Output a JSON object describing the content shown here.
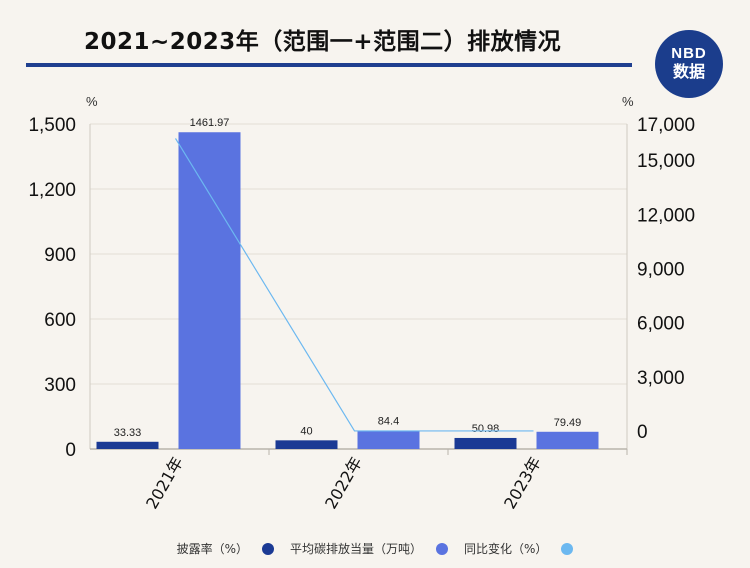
{
  "header": {
    "title": "2021~2023年（范围一+范围二）排放情况",
    "logo_top": "NBD",
    "logo_bottom": "数据"
  },
  "chart_data": {
    "type": "bar",
    "categories": [
      "2021年",
      "2022年",
      "2023年"
    ],
    "series": [
      {
        "name": "披露率（%）",
        "values": [
          33.33,
          40,
          50.98
        ],
        "color": "#1b3a94",
        "axis": "left",
        "kind": "bar"
      },
      {
        "name": "平均碳排放当量（万吨）",
        "values": [
          1461.97,
          84.4,
          79.49
        ],
        "color": "#5a73e0",
        "axis": "left",
        "kind": "bar"
      },
      {
        "name": "同比变化（%）",
        "values": [
          16200,
          0,
          0
        ],
        "color": "#6cb8f0",
        "axis": "right",
        "kind": "line"
      }
    ],
    "y_left": {
      "unit": "%",
      "ticks": [
        0,
        300,
        600,
        900,
        1200,
        1500
      ],
      "tick_labels": [
        "0",
        "300",
        "600",
        "900",
        "1,200",
        "1,500"
      ],
      "ylim": [
        0,
        1500
      ]
    },
    "y_right": {
      "unit": "%",
      "ticks": [
        0,
        3000,
        6000,
        9000,
        12000,
        15000,
        17000
      ],
      "tick_labels": [
        "0",
        "3,000",
        "6,000",
        "9,000",
        "12,000",
        "15,000",
        "17,000"
      ],
      "ylim": [
        -1000,
        17000
      ]
    },
    "data_labels": [
      [
        "33.33",
        "40",
        "50.98"
      ],
      [
        "1461.97",
        "84.4",
        "79.49"
      ]
    ],
    "grid": true,
    "legend_position": "bottom"
  }
}
